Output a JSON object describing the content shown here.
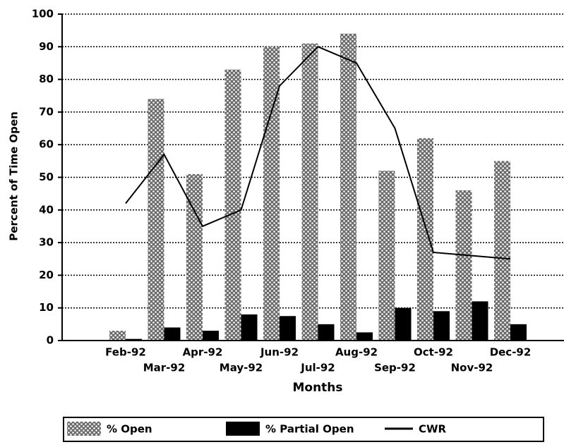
{
  "chart_data": {
    "type": "bar",
    "categories": [
      "Feb-92",
      "Mar-92",
      "Apr-92",
      "May-92",
      "Jun-92",
      "Jul-92",
      "Aug-92",
      "Sep-92",
      "Oct-92",
      "Nov-92",
      "Dec-92"
    ],
    "series": [
      {
        "name": "% Open",
        "color": "#6a6a6a",
        "type": "bar",
        "values": [
          3,
          74,
          51,
          83,
          90,
          91,
          94,
          52,
          62,
          46,
          55
        ]
      },
      {
        "name": "% Partial Open",
        "color": "#000000",
        "type": "bar",
        "values": [
          0.5,
          4,
          3,
          8,
          7.5,
          5,
          2.5,
          10,
          9,
          12,
          5
        ]
      },
      {
        "name": "CWR",
        "color": "#000000",
        "type": "line",
        "values": [
          42,
          57,
          35,
          40,
          78,
          90,
          85,
          65,
          27,
          26,
          25
        ]
      }
    ],
    "x_label": "Months",
    "y_label": "Percent of Time Open",
    "ylim": [
      0,
      100
    ],
    "yticks": [
      0,
      10,
      20,
      30,
      40,
      50,
      60,
      70,
      80,
      90,
      100
    ],
    "grid": true,
    "legend": "bottom"
  }
}
